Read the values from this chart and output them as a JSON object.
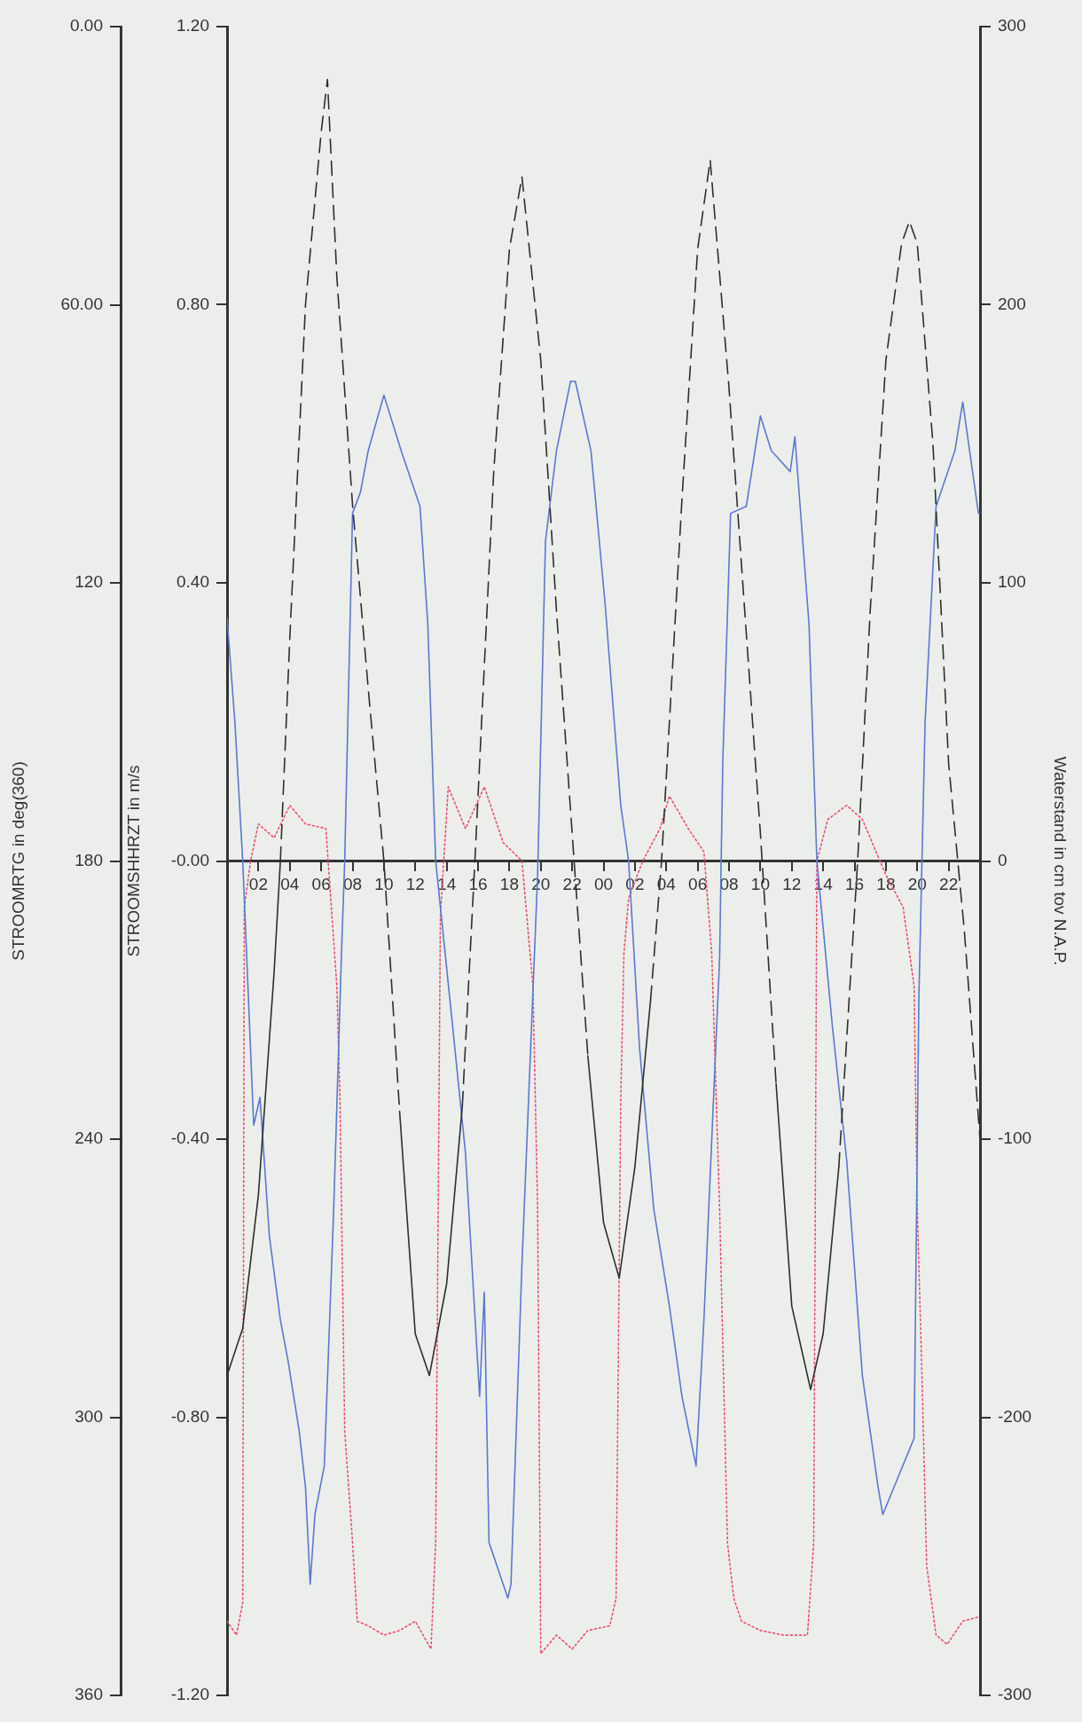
{
  "chart_data": {
    "type": "line",
    "y2label": "Waterstand in cm tov N.A.P.",
    "ylabel": "STROOMSHHRZT in m/s",
    "y3label": "STROOMRTG in deg(360)",
    "xlim": [
      0,
      48
    ],
    "xticks": [
      {
        "value": 2,
        "label": "02"
      },
      {
        "value": 4,
        "label": "04"
      },
      {
        "value": 6,
        "label": "06"
      },
      {
        "value": 8,
        "label": "08"
      },
      {
        "value": 10,
        "label": "10"
      },
      {
        "value": 12,
        "label": "12"
      },
      {
        "value": 14,
        "label": "14"
      },
      {
        "value": 16,
        "label": "16"
      },
      {
        "value": 18,
        "label": "18"
      },
      {
        "value": 20,
        "label": "20"
      },
      {
        "value": 22,
        "label": "22"
      },
      {
        "value": 24,
        "label": "00"
      },
      {
        "value": 26,
        "label": "02"
      },
      {
        "value": 28,
        "label": "04"
      },
      {
        "value": 30,
        "label": "06"
      },
      {
        "value": 32,
        "label": "08"
      },
      {
        "value": 34,
        "label": "10"
      },
      {
        "value": 36,
        "label": "12"
      },
      {
        "value": 38,
        "label": "14"
      },
      {
        "value": 40,
        "label": "16"
      },
      {
        "value": 42,
        "label": "18"
      },
      {
        "value": 44,
        "label": "20"
      },
      {
        "value": 46,
        "label": "22"
      }
    ],
    "y2lim": [
      -300,
      300
    ],
    "y2ticks": [
      300,
      200,
      100,
      0,
      -100,
      -200,
      -300
    ],
    "ylim": [
      -1.2,
      1.2
    ],
    "yticks": [
      {
        "value": 1.2,
        "label": "1.20"
      },
      {
        "value": 0.8,
        "label": "0.80"
      },
      {
        "value": 0.4,
        "label": "0.40"
      },
      {
        "value": 0,
        "label": "-0.00"
      },
      {
        "value": -0.4,
        "label": "-0.40"
      },
      {
        "value": -0.8,
        "label": "-0.80"
      },
      {
        "value": -1.2,
        "label": "-1.20"
      }
    ],
    "y3lim": [
      360,
      0
    ],
    "y3ticks": [
      {
        "value": 0,
        "label": "0.00"
      },
      {
        "value": 60,
        "label": "60.00"
      },
      120,
      180,
      240,
      300,
      360
    ],
    "marker": "none",
    "legend": false,
    "series": [
      {
        "type": "line",
        "axis": "y2",
        "color": "#2e2e2e",
        "line_style": "solid",
        "x": [
          0,
          1,
          2,
          3,
          3.4
        ],
        "values": [
          -185,
          -168,
          -120,
          -40,
          0
        ]
      },
      {
        "type": "line",
        "axis": "y2",
        "color": "#2e2e2e",
        "line_style": "dashed",
        "x": [
          3.4,
          4,
          5,
          6,
          6.4,
          7,
          8,
          9,
          10,
          11
        ],
        "values": [
          0,
          80,
          200,
          262,
          281,
          210,
          128,
          62,
          0,
          -90
        ]
      },
      {
        "type": "line",
        "axis": "y2",
        "color": "#2e2e2e",
        "line_style": "solid",
        "x": [
          11,
          12,
          12.9,
          14,
          15
        ],
        "values": [
          -90,
          -170,
          -185,
          -152,
          -88
        ]
      },
      {
        "type": "line",
        "axis": "y2",
        "color": "#2e2e2e",
        "line_style": "dashed",
        "x": [
          15,
          15.8,
          17,
          18,
          18.8,
          20,
          21,
          22,
          23
        ],
        "values": [
          -88,
          0,
          140,
          220,
          246,
          180,
          90,
          10,
          -70
        ]
      },
      {
        "type": "line",
        "axis": "y2",
        "color": "#2e2e2e",
        "line_style": "solid",
        "x": [
          23,
          24,
          25,
          26,
          27
        ],
        "values": [
          -70,
          -130,
          -150,
          -110,
          -50
        ]
      },
      {
        "type": "line",
        "axis": "y2",
        "color": "#2e2e2e",
        "line_style": "dashed",
        "x": [
          27,
          27.7,
          29,
          30,
          30.8,
          32,
          33,
          34,
          35
        ],
        "values": [
          -50,
          0,
          130,
          220,
          252,
          170,
          90,
          10,
          -80
        ]
      },
      {
        "type": "line",
        "axis": "y2",
        "color": "#2e2e2e",
        "line_style": "solid",
        "x": [
          35,
          36,
          37.2,
          38,
          39
        ],
        "values": [
          -80,
          -160,
          -190,
          -170,
          -110
        ]
      },
      {
        "type": "line",
        "axis": "y2",
        "color": "#2e2e2e",
        "line_style": "dashed",
        "x": [
          39,
          40.2,
          41,
          42,
          43,
          43.5,
          44,
          45,
          46,
          47,
          48
        ],
        "values": [
          -110,
          0,
          90,
          180,
          222,
          230,
          222,
          150,
          35,
          -25,
          -100
        ]
      },
      {
        "type": "line",
        "color": "#5a78d0",
        "line_style": "solid",
        "x": [
          0,
          0.5,
          1,
          1.7,
          2.1,
          2.7,
          3.4,
          3.9,
          4.6,
          5,
          5.3,
          5.6,
          6.2,
          6.8,
          7.3,
          7.5,
          8,
          8.5,
          9,
          10,
          11.1,
          12.3,
          12.8,
          13.3,
          14.3,
          15.2,
          16.1,
          16.4,
          16.7,
          17.9,
          18.1,
          18.8,
          19.8,
          20.3,
          21,
          21.9,
          22.2,
          23.2,
          24.1,
          25.1,
          25.6,
          26.3,
          27.2,
          28.2,
          29,
          29.9,
          30.4,
          31.4,
          31.6,
          32.1,
          33.1,
          34,
          34.7,
          35.9,
          36.2,
          37.1,
          37.6,
          38.6,
          39.5,
          40.5,
          41.5,
          41.8,
          43.8,
          44.1,
          44.5,
          45.2,
          46.4,
          46.9,
          47.9,
          48
        ],
        "values": [
          0.35,
          0.2,
          0,
          -0.38,
          -0.34,
          -0.54,
          -0.66,
          -0.72,
          -0.82,
          -0.9,
          -1.04,
          -0.94,
          -0.87,
          -0.5,
          -0.13,
          0,
          0.5,
          0.53,
          0.59,
          0.67,
          0.59,
          0.51,
          0.34,
          0,
          -0.22,
          -0.42,
          -0.77,
          -0.62,
          -0.98,
          -1.06,
          -1.04,
          -0.58,
          -0.02,
          0.46,
          0.59,
          0.69,
          0.69,
          0.59,
          0.37,
          0.08,
          0,
          -0.27,
          -0.5,
          -0.64,
          -0.77,
          -0.87,
          -0.66,
          -0.14,
          0.14,
          0.5,
          0.51,
          0.64,
          0.59,
          0.56,
          0.61,
          0.34,
          0,
          -0.24,
          -0.43,
          -0.74,
          -0.9,
          -0.94,
          -0.83,
          -0.2,
          0.2,
          0.51,
          0.59,
          0.66,
          0.5,
          0.5
        ]
      },
      {
        "type": "line",
        "axis": "y3",
        "color": "#e8506e",
        "line_style": "dotted",
        "x": [
          0,
          0.6,
          1,
          1.1,
          1.5,
          2,
          3,
          4,
          5,
          6.3,
          7,
          7.2,
          7.5,
          8,
          8.3,
          9,
          10,
          11,
          12,
          13,
          13.3,
          13.6,
          14.1,
          15.2,
          16.4,
          17.6,
          18.8,
          19.5,
          19.8,
          20,
          21,
          22,
          23,
          24.4,
          24.8,
          25.1,
          25.3,
          25.6,
          26.5,
          27.6,
          28.2,
          29.4,
          30.4,
          30.9,
          31.4,
          31.9,
          32.3,
          32.8,
          34,
          35.5,
          37,
          37.4,
          37.6,
          38.3,
          39.5,
          40.5,
          42,
          43.1,
          43.8,
          44,
          44.3,
          44.6,
          45.2,
          45.9,
          46.9,
          48
        ],
        "values": [
          344,
          347,
          340,
          190,
          180,
          172,
          175,
          168,
          172,
          173,
          207,
          231,
          303,
          327,
          344,
          345,
          347,
          346,
          344,
          350,
          327,
          192,
          164,
          173,
          164,
          176,
          180,
          207,
          255,
          351,
          347,
          350,
          346,
          345,
          339,
          231,
          200,
          188,
          180,
          173,
          166,
          173,
          178,
          200,
          255,
          327,
          339,
          344,
          346,
          347,
          347,
          327,
          180,
          171,
          168,
          171,
          183,
          190,
          207,
          255,
          291,
          332,
          347,
          349,
          344,
          343
        ]
      }
    ]
  }
}
